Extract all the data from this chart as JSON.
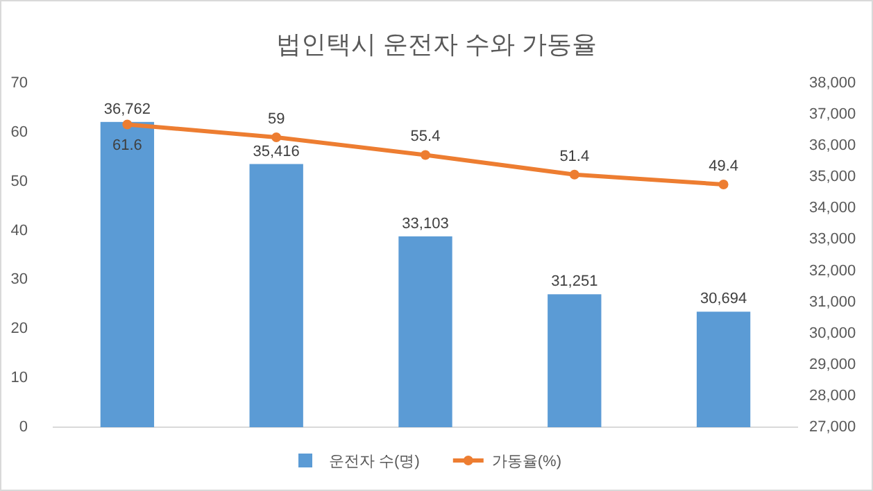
{
  "chart_data": {
    "type": "bar",
    "title": "법인택시 운전자 수와 가동율",
    "categories": [
      null,
      null,
      null,
      null,
      null
    ],
    "series": [
      {
        "name": "운전자 수(명)",
        "axis": "y2",
        "color": "#5b9bd5",
        "values": [
          36762,
          35416,
          33103,
          31251,
          30694
        ],
        "value_labels": [
          "36,762",
          "35,416",
          "33,103",
          "31,251",
          "30,694"
        ]
      },
      {
        "name": "가동율(%)",
        "type": "line",
        "axis": "y",
        "color": "#ed7d31",
        "marker": "circle",
        "values": [
          61.6,
          59,
          55.4,
          51.4,
          49.4
        ],
        "value_labels": [
          "61.6",
          "59",
          "55.4",
          "51.4",
          "49.4"
        ]
      }
    ],
    "ylim": [
      0,
      70
    ],
    "yticks": [
      0,
      10,
      20,
      30,
      40,
      50,
      60,
      70
    ],
    "y2lim": [
      27000,
      38000
    ],
    "y2ticks": [
      {
        "value": 27000,
        "label": "27,000"
      },
      {
        "value": 28000,
        "label": "28,000"
      },
      {
        "value": 29000,
        "label": "29,000"
      },
      {
        "value": 30000,
        "label": "30,000"
      },
      {
        "value": 31000,
        "label": "31,000"
      },
      {
        "value": 32000,
        "label": "32,000"
      },
      {
        "value": 33000,
        "label": "33,000"
      },
      {
        "value": 34000,
        "label": "34,000"
      },
      {
        "value": 35000,
        "label": "35,000"
      },
      {
        "value": 36000,
        "label": "36,000"
      },
      {
        "value": 37000,
        "label": "37,000"
      },
      {
        "value": 38000,
        "label": "38,000"
      }
    ],
    "legend": "bottom"
  }
}
